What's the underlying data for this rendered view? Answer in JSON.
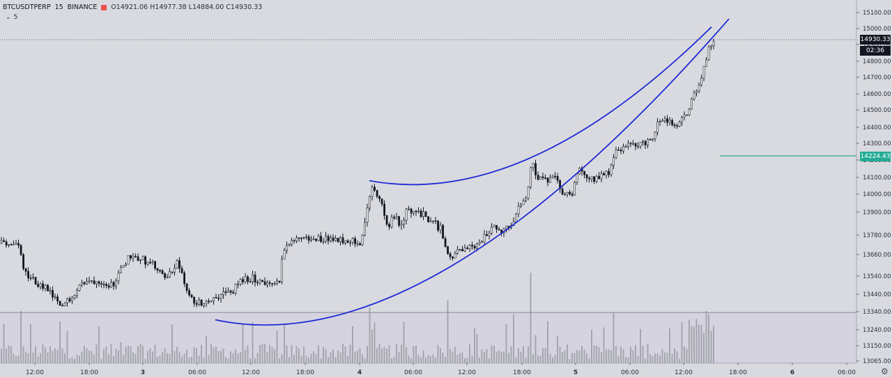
{
  "header": {
    "symbol": "BTCUSDTPERP",
    "interval": "15",
    "exchange": "BINANCE",
    "ohlc_text": "O14921.06 H14977.38 L14884.00 C14930.33",
    "indicator_value": "5"
  },
  "price_tags": {
    "last_price": "14930.33",
    "countdown": "02:36",
    "level_price": "14224.43"
  },
  "colors": {
    "background": "#d9dadf",
    "volume_band": "#d5d3e0",
    "candle": "#131722",
    "curve": "#1f2ad6",
    "level_line": "#22ab94",
    "volume_bar": "#a4a6ad"
  },
  "chart_data": {
    "type": "candlestick",
    "y_axis": {
      "ticks": [
        "15100.00",
        "15000.00",
        "14900.00",
        "14800.00",
        "14700.00",
        "14600.00",
        "14500.00",
        "14400.00",
        "14300.00",
        "14200.00",
        "14100.00",
        "14000.00",
        "13900.00",
        "13780.00",
        "13660.00",
        "13540.00",
        "13440.00",
        "13340.00",
        "13240.00",
        "13150.00",
        "13065.00"
      ],
      "position": "right"
    },
    "x_axis": {
      "ticks": [
        "12:00",
        "18:00",
        "3",
        "06:00",
        "12:00",
        "18:00",
        "4",
        "06:00",
        "12:00",
        "18:00",
        "5",
        "06:00",
        "12:00",
        "18:00",
        "6",
        "06:00"
      ]
    },
    "last_price": 14930.33,
    "horizontal_level": 14224.43,
    "volume_separator_price": 13335,
    "candle_anchors": [
      [
        0,
        13730
      ],
      [
        25,
        13720
      ],
      [
        34,
        13560
      ],
      [
        48,
        13510
      ],
      [
        65,
        13470
      ],
      [
        78,
        13410
      ],
      [
        85,
        13360
      ],
      [
        100,
        13420
      ],
      [
        115,
        13500
      ],
      [
        140,
        13520
      ],
      [
        160,
        13490
      ],
      [
        175,
        13590
      ],
      [
        185,
        13660
      ],
      [
        200,
        13640
      ],
      [
        220,
        13600
      ],
      [
        235,
        13520
      ],
      [
        255,
        13620
      ],
      [
        265,
        13470
      ],
      [
        272,
        13410
      ],
      [
        285,
        13390
      ],
      [
        300,
        13410
      ],
      [
        315,
        13440
      ],
      [
        330,
        13450
      ],
      [
        345,
        13510
      ],
      [
        360,
        13530
      ],
      [
        375,
        13510
      ],
      [
        390,
        13490
      ],
      [
        400,
        13500
      ],
      [
        405,
        13700
      ],
      [
        420,
        13740
      ],
      [
        430,
        13770
      ],
      [
        445,
        13750
      ],
      [
        460,
        13760
      ],
      [
        475,
        13760
      ],
      [
        490,
        13750
      ],
      [
        505,
        13750
      ],
      [
        515,
        13730
      ],
      [
        525,
        13880
      ],
      [
        532,
        14050
      ],
      [
        540,
        14000
      ],
      [
        548,
        13920
      ],
      [
        555,
        13820
      ],
      [
        565,
        13880
      ],
      [
        572,
        13830
      ],
      [
        582,
        13900
      ],
      [
        595,
        13920
      ],
      [
        608,
        13880
      ],
      [
        620,
        13850
      ],
      [
        632,
        13810
      ],
      [
        642,
        13640
      ],
      [
        650,
        13660
      ],
      [
        660,
        13690
      ],
      [
        672,
        13700
      ],
      [
        685,
        13720
      ],
      [
        700,
        13800
      ],
      [
        712,
        13830
      ],
      [
        722,
        13800
      ],
      [
        735,
        13860
      ],
      [
        745,
        13930
      ],
      [
        755,
        14000
      ],
      [
        762,
        14200
      ],
      [
        770,
        14100
      ],
      [
        782,
        14080
      ],
      [
        795,
        14090
      ],
      [
        808,
        14000
      ],
      [
        820,
        14010
      ],
      [
        828,
        14140
      ],
      [
        838,
        14120
      ],
      [
        850,
        14090
      ],
      [
        862,
        14110
      ],
      [
        875,
        14140
      ],
      [
        882,
        14250
      ],
      [
        895,
        14280
      ],
      [
        908,
        14290
      ],
      [
        922,
        14300
      ],
      [
        935,
        14330
      ],
      [
        945,
        14450
      ],
      [
        955,
        14440
      ],
      [
        965,
        14400
      ],
      [
        975,
        14430
      ],
      [
        985,
        14480
      ],
      [
        993,
        14580
      ],
      [
        1000,
        14640
      ],
      [
        1008,
        14730
      ],
      [
        1016,
        14880
      ],
      [
        1023,
        14930
      ]
    ],
    "channel_curves": [
      {
        "from": [
          530,
          14080
        ],
        "to": [
          1021,
          15010
        ],
        "through": [
          765,
          14220
        ]
      },
      {
        "from": [
          309,
          13295
        ],
        "to": [
          1046,
          15060
        ],
        "through": [
          645,
          13590
        ]
      }
    ]
  }
}
